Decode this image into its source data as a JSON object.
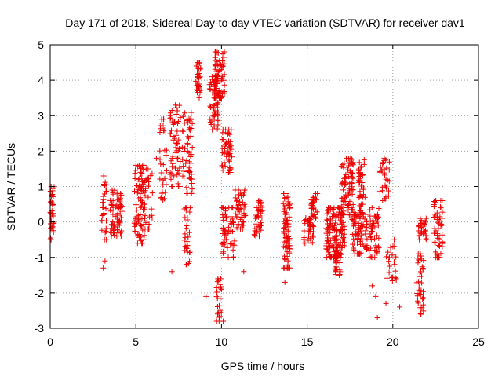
{
  "chart_data": {
    "type": "scatter",
    "title": "Day 171 of 2018, Sidereal Day-to-day VTEC variation (SDTVAR) for receiver dav1",
    "xlabel": "GPS time / hours",
    "ylabel": "SDTVAR / TECUs",
    "xlim": [
      0,
      25
    ],
    "ylim": [
      -3,
      5
    ],
    "xticks": [
      "0",
      "5",
      "10",
      "15",
      "20",
      "25"
    ],
    "yticks": [
      "-3",
      "-2",
      "-1",
      "0",
      "1",
      "2",
      "3",
      "4",
      "5"
    ],
    "grid": true,
    "marker": "+",
    "color": "#ee0000",
    "series": [
      {
        "name": "SDTVAR",
        "clusters": [
          {
            "x": [
              0.0,
              0.25
            ],
            "y": [
              -0.5,
              1.0
            ],
            "n": 40
          },
          {
            "x": [
              3.0,
              3.3
            ],
            "y": [
              -0.5,
              1.3
            ],
            "n": 30
          },
          {
            "x": [
              3.5,
              4.2
            ],
            "y": [
              -0.4,
              0.9
            ],
            "n": 70
          },
          {
            "x": [
              4.9,
              5.5
            ],
            "y": [
              -0.6,
              1.6
            ],
            "n": 80
          },
          {
            "x": [
              5.5,
              6.0
            ],
            "y": [
              -0.2,
              1.5
            ],
            "n": 30
          },
          {
            "x": [
              6.4,
              6.8
            ],
            "y": [
              0.6,
              2.9
            ],
            "n": 30
          },
          {
            "x": [
              7.0,
              7.6
            ],
            "y": [
              1.0,
              3.3
            ],
            "n": 60
          },
          {
            "x": [
              7.7,
              8.3
            ],
            "y": [
              0.8,
              3.2
            ],
            "n": 60
          },
          {
            "x": [
              7.8,
              8.2
            ],
            "y": [
              -1.2,
              0.4
            ],
            "n": 30
          },
          {
            "x": [
              8.5,
              8.8
            ],
            "y": [
              3.5,
              4.5
            ],
            "n": 30
          },
          {
            "x": [
              9.3,
              9.8
            ],
            "y": [
              2.6,
              4.1
            ],
            "n": 60
          },
          {
            "x": [
              9.6,
              10.2
            ],
            "y": [
              3.5,
              4.8
            ],
            "n": 70
          },
          {
            "x": [
              10.0,
              10.6
            ],
            "y": [
              1.4,
              2.6
            ],
            "n": 50
          },
          {
            "x": [
              9.7,
              10.0
            ],
            "y": [
              -2.8,
              -1.6
            ],
            "n": 25
          },
          {
            "x": [
              10.0,
              10.8
            ],
            "y": [
              -1.0,
              0.4
            ],
            "n": 60
          },
          {
            "x": [
              10.8,
              11.4
            ],
            "y": [
              -0.2,
              0.9
            ],
            "n": 50
          },
          {
            "x": [
              11.9,
              12.4
            ],
            "y": [
              -0.4,
              0.6
            ],
            "n": 40
          },
          {
            "x": [
              13.6,
              14.0
            ],
            "y": [
              -1.3,
              0.8
            ],
            "n": 80
          },
          {
            "x": [
              14.8,
              15.4
            ],
            "y": [
              -0.6,
              0.2
            ],
            "n": 40
          },
          {
            "x": [
              15.2,
              15.6
            ],
            "y": [
              0.1,
              0.8
            ],
            "n": 30
          },
          {
            "x": [
              16.1,
              17.2
            ],
            "y": [
              -1.0,
              0.4
            ],
            "n": 150
          },
          {
            "x": [
              16.6,
              17.0
            ],
            "y": [
              -1.5,
              -0.8
            ],
            "n": 30
          },
          {
            "x": [
              17.0,
              17.7
            ],
            "y": [
              0.2,
              1.8
            ],
            "n": 80
          },
          {
            "x": [
              17.6,
              18.5
            ],
            "y": [
              -0.9,
              0.5
            ],
            "n": 90
          },
          {
            "x": [
              18.0,
              18.4
            ],
            "y": [
              0.6,
              1.8
            ],
            "n": 30
          },
          {
            "x": [
              18.6,
              19.2
            ],
            "y": [
              -1.0,
              0.4
            ],
            "n": 50
          },
          {
            "x": [
              19.2,
              19.8
            ],
            "y": [
              0.6,
              1.8
            ],
            "n": 30
          },
          {
            "x": [
              19.5,
              20.2
            ],
            "y": [
              -1.7,
              -0.5
            ],
            "n": 20
          },
          {
            "x": [
              21.4,
              21.8
            ],
            "y": [
              -2.6,
              -0.9
            ],
            "n": 40
          },
          {
            "x": [
              21.5,
              22.0
            ],
            "y": [
              -0.5,
              0.1
            ],
            "n": 30
          },
          {
            "x": [
              22.4,
              22.9
            ],
            "y": [
              -1.0,
              0.6
            ],
            "n": 50
          }
        ],
        "extra_points": [
          [
            3.1,
            -1.3
          ],
          [
            3.2,
            -1.1
          ],
          [
            6.2,
            1.8
          ],
          [
            7.1,
            -1.4
          ],
          [
            9.1,
            -2.1
          ],
          [
            10.1,
            -2.8
          ],
          [
            11.3,
            -1.4
          ],
          [
            13.7,
            -1.7
          ],
          [
            19.1,
            -2.7
          ],
          [
            19.6,
            -2.3
          ],
          [
            20.2,
            -1.6
          ],
          [
            20.4,
            -2.4
          ],
          [
            20.1,
            -1.2
          ],
          [
            19.0,
            -2.1
          ],
          [
            18.8,
            -1.8
          ]
        ]
      }
    ]
  }
}
